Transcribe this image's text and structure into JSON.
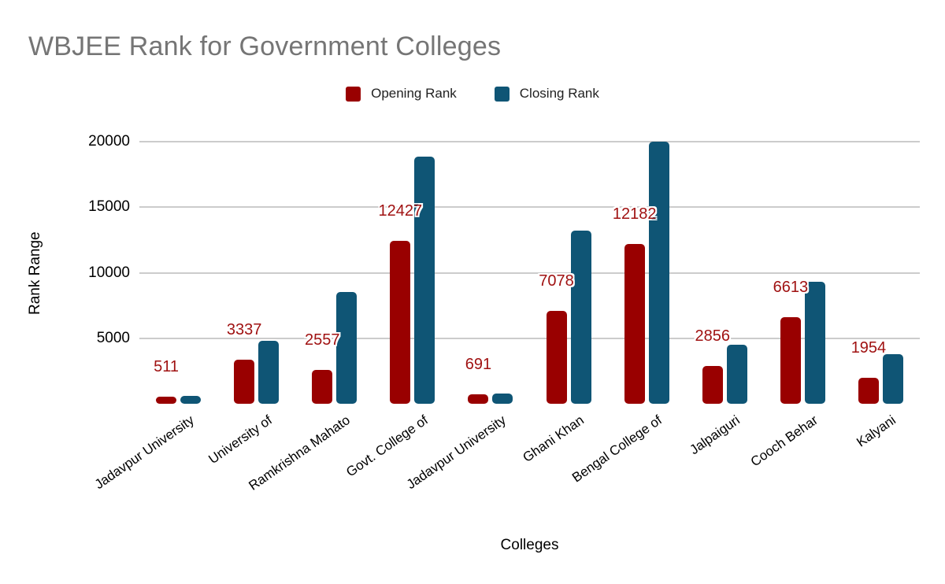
{
  "title": "WBJEE Rank for Government Colleges",
  "legend": [
    {
      "label": "Opening Rank",
      "color": "#990000"
    },
    {
      "label": "Closing Rank",
      "color": "#0F5575"
    }
  ],
  "colors": {
    "opening_bar": "#990000",
    "closing_bar": "#0F5575",
    "value_label": "#A01212",
    "title_text": "#757575",
    "gridline": "#CCCCCC",
    "axis_text": "#000000"
  },
  "chart_data": {
    "type": "bar",
    "title": "WBJEE Rank for Government Colleges",
    "xlabel": "Colleges",
    "ylabel": "Rank Range",
    "ylim": [
      0,
      20000
    ],
    "yticks": [
      5000,
      10000,
      15000,
      20000
    ],
    "grid": true,
    "legend_position": "top",
    "categories": [
      "Jadavpur University",
      "University of",
      "Ramkrishna Mahato",
      "Govt. College of",
      "Jadavpur University",
      "Ghani Khan",
      "Bengal College of",
      "Jalpaiguri",
      "Cooch Behar",
      "Kalyani"
    ],
    "series": [
      {
        "name": "Opening Rank",
        "color": "#990000",
        "values": [
          511,
          3337,
          2557,
          12427,
          691,
          7078,
          12182,
          2856,
          6613,
          1954
        ],
        "data_labels_shown": true
      },
      {
        "name": "Closing Rank",
        "color": "#0F5575",
        "values": [
          600,
          4800,
          8550,
          18850,
          780,
          13200,
          20000,
          4500,
          9300,
          3800
        ],
        "data_labels_shown": false,
        "note": "values estimated from bar heights against gridlines"
      }
    ]
  }
}
